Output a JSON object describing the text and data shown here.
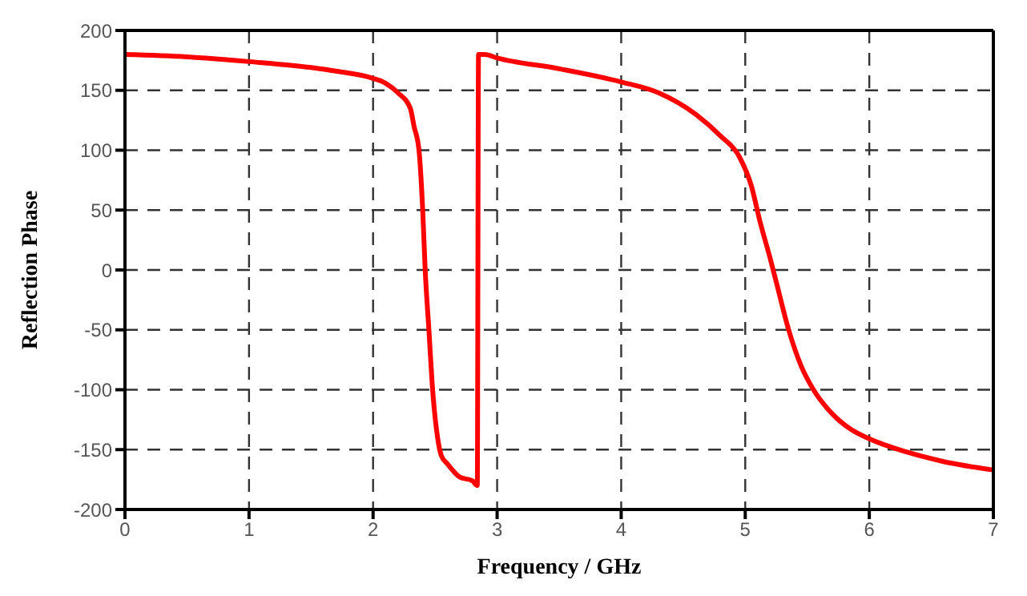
{
  "chart_data": {
    "type": "line",
    "xlabel": "Frequency / GHz",
    "ylabel": "Reflection Phase",
    "series": [
      {
        "color": "#ff0000",
        "x": [
          0,
          0.5,
          1,
          1.5,
          1.7,
          2,
          2.1,
          2.2,
          2.3,
          2.33,
          2.37,
          2.4,
          2.42,
          2.45,
          2.48,
          2.52,
          2.55,
          2.6,
          2.7,
          2.8,
          2.84,
          2.85,
          2.9,
          3,
          3.5,
          4,
          4.3,
          4.6,
          4.8,
          4.95,
          5.05,
          5.12,
          5.2,
          5.25,
          5.35,
          5.45,
          5.55,
          5.7,
          5.85,
          6,
          6.3,
          6.6,
          7
        ],
        "values": [
          180,
          178,
          174,
          169,
          166,
          160,
          156,
          148,
          135,
          120,
          100,
          50,
          0,
          -50,
          -100,
          -140,
          -155,
          -162,
          -173,
          -176,
          -180,
          180,
          180,
          177,
          168,
          157,
          148,
          130,
          112,
          95,
          70,
          40,
          10,
          -10,
          -50,
          -80,
          -100,
          -120,
          -133,
          -141,
          -152,
          -160,
          -167
        ]
      }
    ],
    "xlim": [
      0,
      7
    ],
    "xticks": [
      0,
      1,
      2,
      3,
      4,
      5,
      6,
      7
    ],
    "ylim": [
      -200,
      200
    ],
    "yticks": [
      -200,
      -150,
      -100,
      -50,
      0,
      50,
      100,
      150,
      200
    ],
    "grid": true,
    "legend": false,
    "marker": "none",
    "line_style": "solid"
  }
}
